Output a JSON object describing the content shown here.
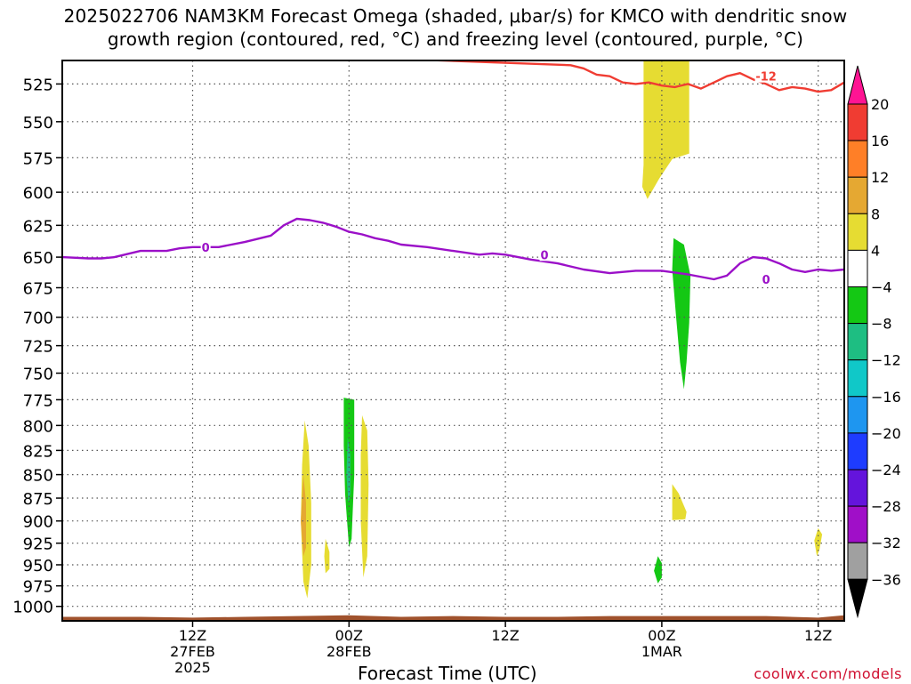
{
  "header": {
    "title_line1": "2025022706 NAM3KM Forecast Omega (shaded, μbar/s) for KMCO with dendritic snow",
    "title_line2": "growth region (contoured, red, °C) and freezing level (contoured, purple, °C)"
  },
  "footer": {
    "x_axis_title": "Forecast Time (UTC)",
    "credit": "coolwx.com/models"
  },
  "chart_data": {
    "type": "heatmap",
    "title": "2025022706 NAM3KM Forecast Omega (shaded, μbar/s) for KMCO with dendritic snow growth region (contoured, red, °C) and freezing level (contoured, purple, °C)",
    "xlabel": "Forecast Time (UTC)",
    "ylabel": "",
    "x_units": "hours after 2025-02-27 00Z",
    "xlim": [
      2,
      62
    ],
    "ylim": [
      1018,
      510
    ],
    "y_scale": "log-pressure (inverted)",
    "grid": true,
    "x_ticks": [
      {
        "x": 12,
        "lines": [
          "12Z",
          "27FEB",
          "2025"
        ]
      },
      {
        "x": 24,
        "lines": [
          "00Z",
          "28FEB"
        ]
      },
      {
        "x": 36,
        "lines": [
          "12Z"
        ]
      },
      {
        "x": 48,
        "lines": [
          "00Z",
          "1MAR"
        ]
      },
      {
        "x": 60,
        "lines": [
          "12Z"
        ]
      }
    ],
    "y_ticks": [
      525,
      550,
      575,
      600,
      625,
      650,
      675,
      700,
      725,
      750,
      775,
      800,
      825,
      850,
      875,
      900,
      925,
      950,
      975,
      1000
    ],
    "colorbar": {
      "labels": [
        "20",
        "16",
        "12",
        "8",
        "4",
        "−4",
        "−8",
        "−12",
        "−16",
        "−20",
        "−24",
        "−28",
        "−32",
        "−36"
      ],
      "colors": [
        "#ff1493",
        "#f03c32",
        "#ff7f27",
        "#e5a832",
        "#e6dc32",
        "#ffffff",
        "#14c814",
        "#1ebe82",
        "#10c8c8",
        "#1e96f0",
        "#1e3cff",
        "#6414dc",
        "#a00fc8",
        "#a0a0a0",
        "#000000"
      ]
    },
    "series": [
      {
        "name": "-12",
        "color": "#f03c32",
        "x": [
          5,
          41,
          42,
          43,
          44,
          45,
          46,
          47,
          48,
          49,
          50,
          51,
          52,
          53,
          54,
          55,
          56,
          57,
          58,
          59,
          60,
          61,
          62
        ],
        "y": [
          null,
          513,
          515,
          519,
          520,
          524,
          525,
          524,
          526,
          527,
          525,
          528,
          524,
          520,
          518,
          522,
          525,
          529,
          527,
          528,
          530,
          529,
          524
        ]
      },
      {
        "name": "0",
        "color": "#9b10c8",
        "x": [
          2,
          4,
          5,
          6,
          8,
          10,
          11,
          12,
          14,
          16,
          18,
          19,
          20,
          21,
          22,
          23,
          24,
          25,
          26,
          27,
          28,
          30,
          32,
          34,
          35,
          36,
          38,
          40,
          42,
          44,
          46,
          48,
          50,
          52,
          53,
          54,
          55,
          56,
          57,
          58,
          59,
          60,
          61,
          62
        ],
        "y": [
          650,
          651,
          651,
          650,
          645,
          645,
          643,
          642,
          642,
          638,
          633,
          625,
          620,
          621,
          623,
          626,
          630,
          632,
          635,
          637,
          640,
          642,
          645,
          648,
          647,
          648,
          652,
          655,
          660,
          663,
          661,
          661,
          664,
          668,
          665,
          655,
          650,
          651,
          655,
          660,
          662,
          660,
          661,
          660
        ]
      }
    ],
    "regions": [
      {
        "value": 5,
        "points": [
          [
            46.6,
            510
          ],
          [
            50.1,
            510
          ],
          [
            50.1,
            572
          ],
          [
            48.8,
            576
          ],
          [
            47.8,
            590
          ],
          [
            46.9,
            605
          ],
          [
            46.5,
            596
          ],
          [
            46.6,
            580
          ]
        ]
      },
      {
        "value": -6,
        "points": [
          [
            48.9,
            635
          ],
          [
            49.7,
            640
          ],
          [
            50.2,
            665
          ],
          [
            50.1,
            705
          ],
          [
            49.9,
            740
          ],
          [
            49.7,
            765
          ],
          [
            49.4,
            740
          ],
          [
            49.1,
            700
          ],
          [
            48.8,
            660
          ]
        ]
      },
      {
        "value": 5,
        "points": [
          [
            48.8,
            860
          ],
          [
            49.3,
            870
          ],
          [
            49.9,
            890
          ],
          [
            49.8,
            898
          ],
          [
            48.8,
            899
          ],
          [
            48.8,
            878
          ]
        ]
      },
      {
        "value": -6,
        "points": [
          [
            47.7,
            940
          ],
          [
            48.0,
            948
          ],
          [
            48.0,
            965
          ],
          [
            47.7,
            972
          ],
          [
            47.4,
            957
          ]
        ]
      },
      {
        "value": 5,
        "points": [
          [
            60.0,
            908
          ],
          [
            60.3,
            915
          ],
          [
            60.1,
            932
          ],
          [
            59.9,
            940
          ],
          [
            59.7,
            922
          ]
        ]
      },
      {
        "value": 5,
        "points": [
          [
            20.6,
            795
          ],
          [
            20.9,
            820
          ],
          [
            21.1,
            880
          ],
          [
            21.1,
            950
          ],
          [
            20.8,
            990
          ],
          [
            20.5,
            970
          ],
          [
            20.3,
            900
          ],
          [
            20.4,
            840
          ]
        ]
      },
      {
        "value": 9,
        "points": [
          [
            20.5,
            850
          ],
          [
            20.7,
            880
          ],
          [
            20.7,
            930
          ],
          [
            20.5,
            940
          ],
          [
            20.3,
            900
          ]
        ]
      },
      {
        "value": 5,
        "points": [
          [
            22.2,
            920
          ],
          [
            22.5,
            935
          ],
          [
            22.5,
            955
          ],
          [
            22.2,
            960
          ],
          [
            22.1,
            940
          ]
        ]
      },
      {
        "value": -6,
        "points": [
          [
            23.6,
            773
          ],
          [
            24.4,
            775
          ],
          [
            24.4,
            850
          ],
          [
            24.2,
            920
          ],
          [
            24.0,
            930
          ],
          [
            23.7,
            870
          ],
          [
            23.6,
            820
          ]
        ]
      },
      {
        "value": -11,
        "points": [
          [
            23.9,
            812
          ],
          [
            24.1,
            830
          ],
          [
            24.1,
            870
          ],
          [
            23.95,
            880
          ],
          [
            23.8,
            850
          ]
        ]
      },
      {
        "value": 5,
        "points": [
          [
            25.0,
            790
          ],
          [
            25.4,
            805
          ],
          [
            25.5,
            860
          ],
          [
            25.4,
            940
          ],
          [
            25.1,
            965
          ],
          [
            24.9,
            900
          ],
          [
            24.9,
            830
          ]
        ]
      }
    ],
    "contour_labels": [
      {
        "text": "0",
        "x": 13.0,
        "y": 642,
        "color": "#9b10c8"
      },
      {
        "text": "0",
        "x": 39.0,
        "y": 648,
        "color": "#9b10c8"
      },
      {
        "text": "0",
        "x": 56.0,
        "y": 668,
        "color": "#9b10c8"
      },
      {
        "text": "-12",
        "x": 56.0,
        "y": 520,
        "color": "#f03c32"
      }
    ],
    "terrain": {
      "color": "#a0522d",
      "x": [
        2,
        8,
        12,
        16,
        20,
        24,
        28,
        32,
        36,
        40,
        44,
        48,
        52,
        56,
        60,
        62
      ],
      "y": [
        1013,
        1013,
        1014,
        1013,
        1012,
        1011,
        1013,
        1012,
        1013,
        1013,
        1012,
        1012,
        1012,
        1012,
        1014,
        1011
      ]
    }
  }
}
